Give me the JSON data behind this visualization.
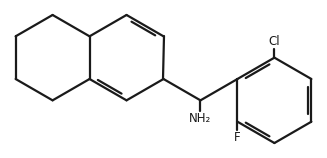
{
  "background_color": "#ffffff",
  "line_color": "#1a1a1a",
  "line_width": 1.6,
  "label_Cl": "Cl",
  "label_F": "F",
  "label_NH2": "NH₂",
  "font_size_labels": 8.5
}
